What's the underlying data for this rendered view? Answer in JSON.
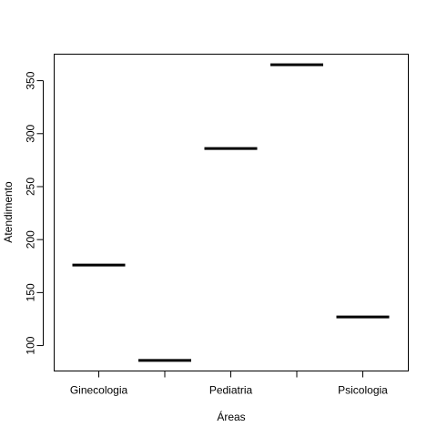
{
  "chart_data": {
    "type": "bar",
    "title": "",
    "xlabel": "Áreas",
    "ylabel": "Atendimento",
    "categories": [
      "Ginecologia",
      "",
      "Pediatria",
      "",
      "Psicologia"
    ],
    "values": [
      176,
      86,
      286,
      365,
      127
    ],
    "ylim": [
      76,
      375
    ],
    "yticks": [
      100,
      150,
      200,
      250,
      300,
      350
    ],
    "grid": false,
    "legend": "none",
    "mark_color": "#000000"
  }
}
